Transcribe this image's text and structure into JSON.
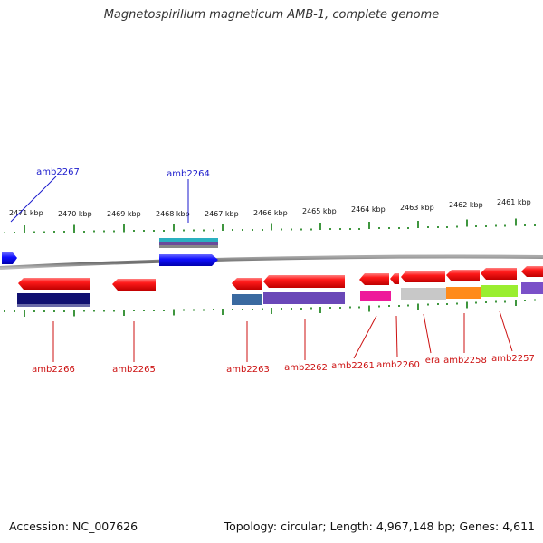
{
  "title": "Magnetospirillum magneticum AMB-1, complete genome",
  "footer": {
    "accession": "Accession: NC_007626",
    "topology": "Topology: circular; Length: 4,967,148 bp; Genes: 4,611"
  },
  "scale_labels": [
    "2471 kbp",
    "2470 kbp",
    "2469 kbp",
    "2468 kbp",
    "2467 kbp",
    "2466 kbp",
    "2465 kbp",
    "2464 kbp",
    "2463 kbp",
    "2462 kbp",
    "2461 kbp"
  ],
  "genes_top": [
    "amb2267",
    "amb2264"
  ],
  "genes_bottom": [
    "amb2266",
    "amb2265",
    "amb2263",
    "amb2262",
    "amb2261",
    "amb2260",
    "era",
    "amb2258",
    "amb2257"
  ],
  "colors": {
    "forward_gene": "#1a1aff",
    "reverse_gene": "#ee1111",
    "tick": "#2a8a2a",
    "backbone": "#888888",
    "top_label": "#1a1acc",
    "bottom_label": "#cc1111"
  }
}
